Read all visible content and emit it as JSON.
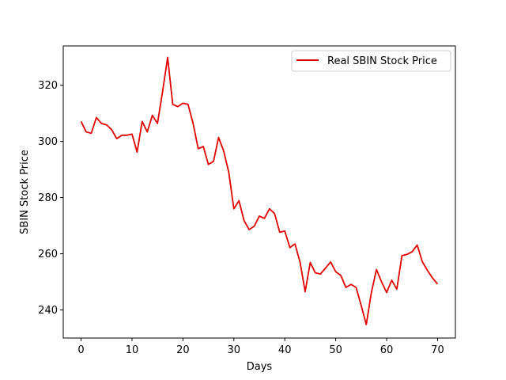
{
  "chart_data": {
    "type": "line",
    "title": "",
    "xlabel": "Days",
    "ylabel": "SBIN Stock Price",
    "xlim": [
      -3.5,
      73.5
    ],
    "ylim": [
      230,
      334
    ],
    "xticks": [
      0,
      10,
      20,
      30,
      40,
      50,
      60,
      70
    ],
    "yticks": [
      240,
      260,
      280,
      300,
      320
    ],
    "grid": false,
    "legend_position": "top-right",
    "series": [
      {
        "name": "Real SBIN Stock Price",
        "color": "#e00000",
        "x": [
          0,
          1,
          2,
          3,
          4,
          5,
          6,
          7,
          8,
          9,
          10,
          11,
          12,
          13,
          14,
          15,
          16,
          17,
          18,
          19,
          20,
          21,
          22,
          23,
          24,
          25,
          26,
          27,
          28,
          29,
          30,
          31,
          32,
          33,
          34,
          35,
          36,
          37,
          38,
          39,
          40,
          41,
          42,
          43,
          44,
          45,
          46,
          47,
          48,
          49,
          50,
          51,
          52,
          53,
          54,
          55,
          56,
          57,
          58,
          59,
          60,
          61,
          62,
          63,
          64,
          65,
          66,
          67,
          68,
          69,
          70
        ],
        "values": [
          307.1,
          303.4,
          302.9,
          308.5,
          306.4,
          305.9,
          304.2,
          301.0,
          302.2,
          302.2,
          302.6,
          296.2,
          307.1,
          303.4,
          309.3,
          306.4,
          317.7,
          329.9,
          313.2,
          312.4,
          313.6,
          313.2,
          306.4,
          297.4,
          298.2,
          291.8,
          292.9,
          301.4,
          296.6,
          289.0,
          276.0,
          278.9,
          271.8,
          268.6,
          269.8,
          273.4,
          272.6,
          276.0,
          274.3,
          267.7,
          268.1,
          262.2,
          263.5,
          257.0,
          246.5,
          256.9,
          253.2,
          252.8,
          254.9,
          257.1,
          253.6,
          252.3,
          248.0,
          249.1,
          248.0,
          241.6,
          234.8,
          246.2,
          254.4,
          250.0,
          246.2,
          250.6,
          247.4,
          259.3,
          259.8,
          260.7,
          263.1,
          257.2,
          254.1,
          251.4,
          249.2
        ]
      }
    ]
  }
}
